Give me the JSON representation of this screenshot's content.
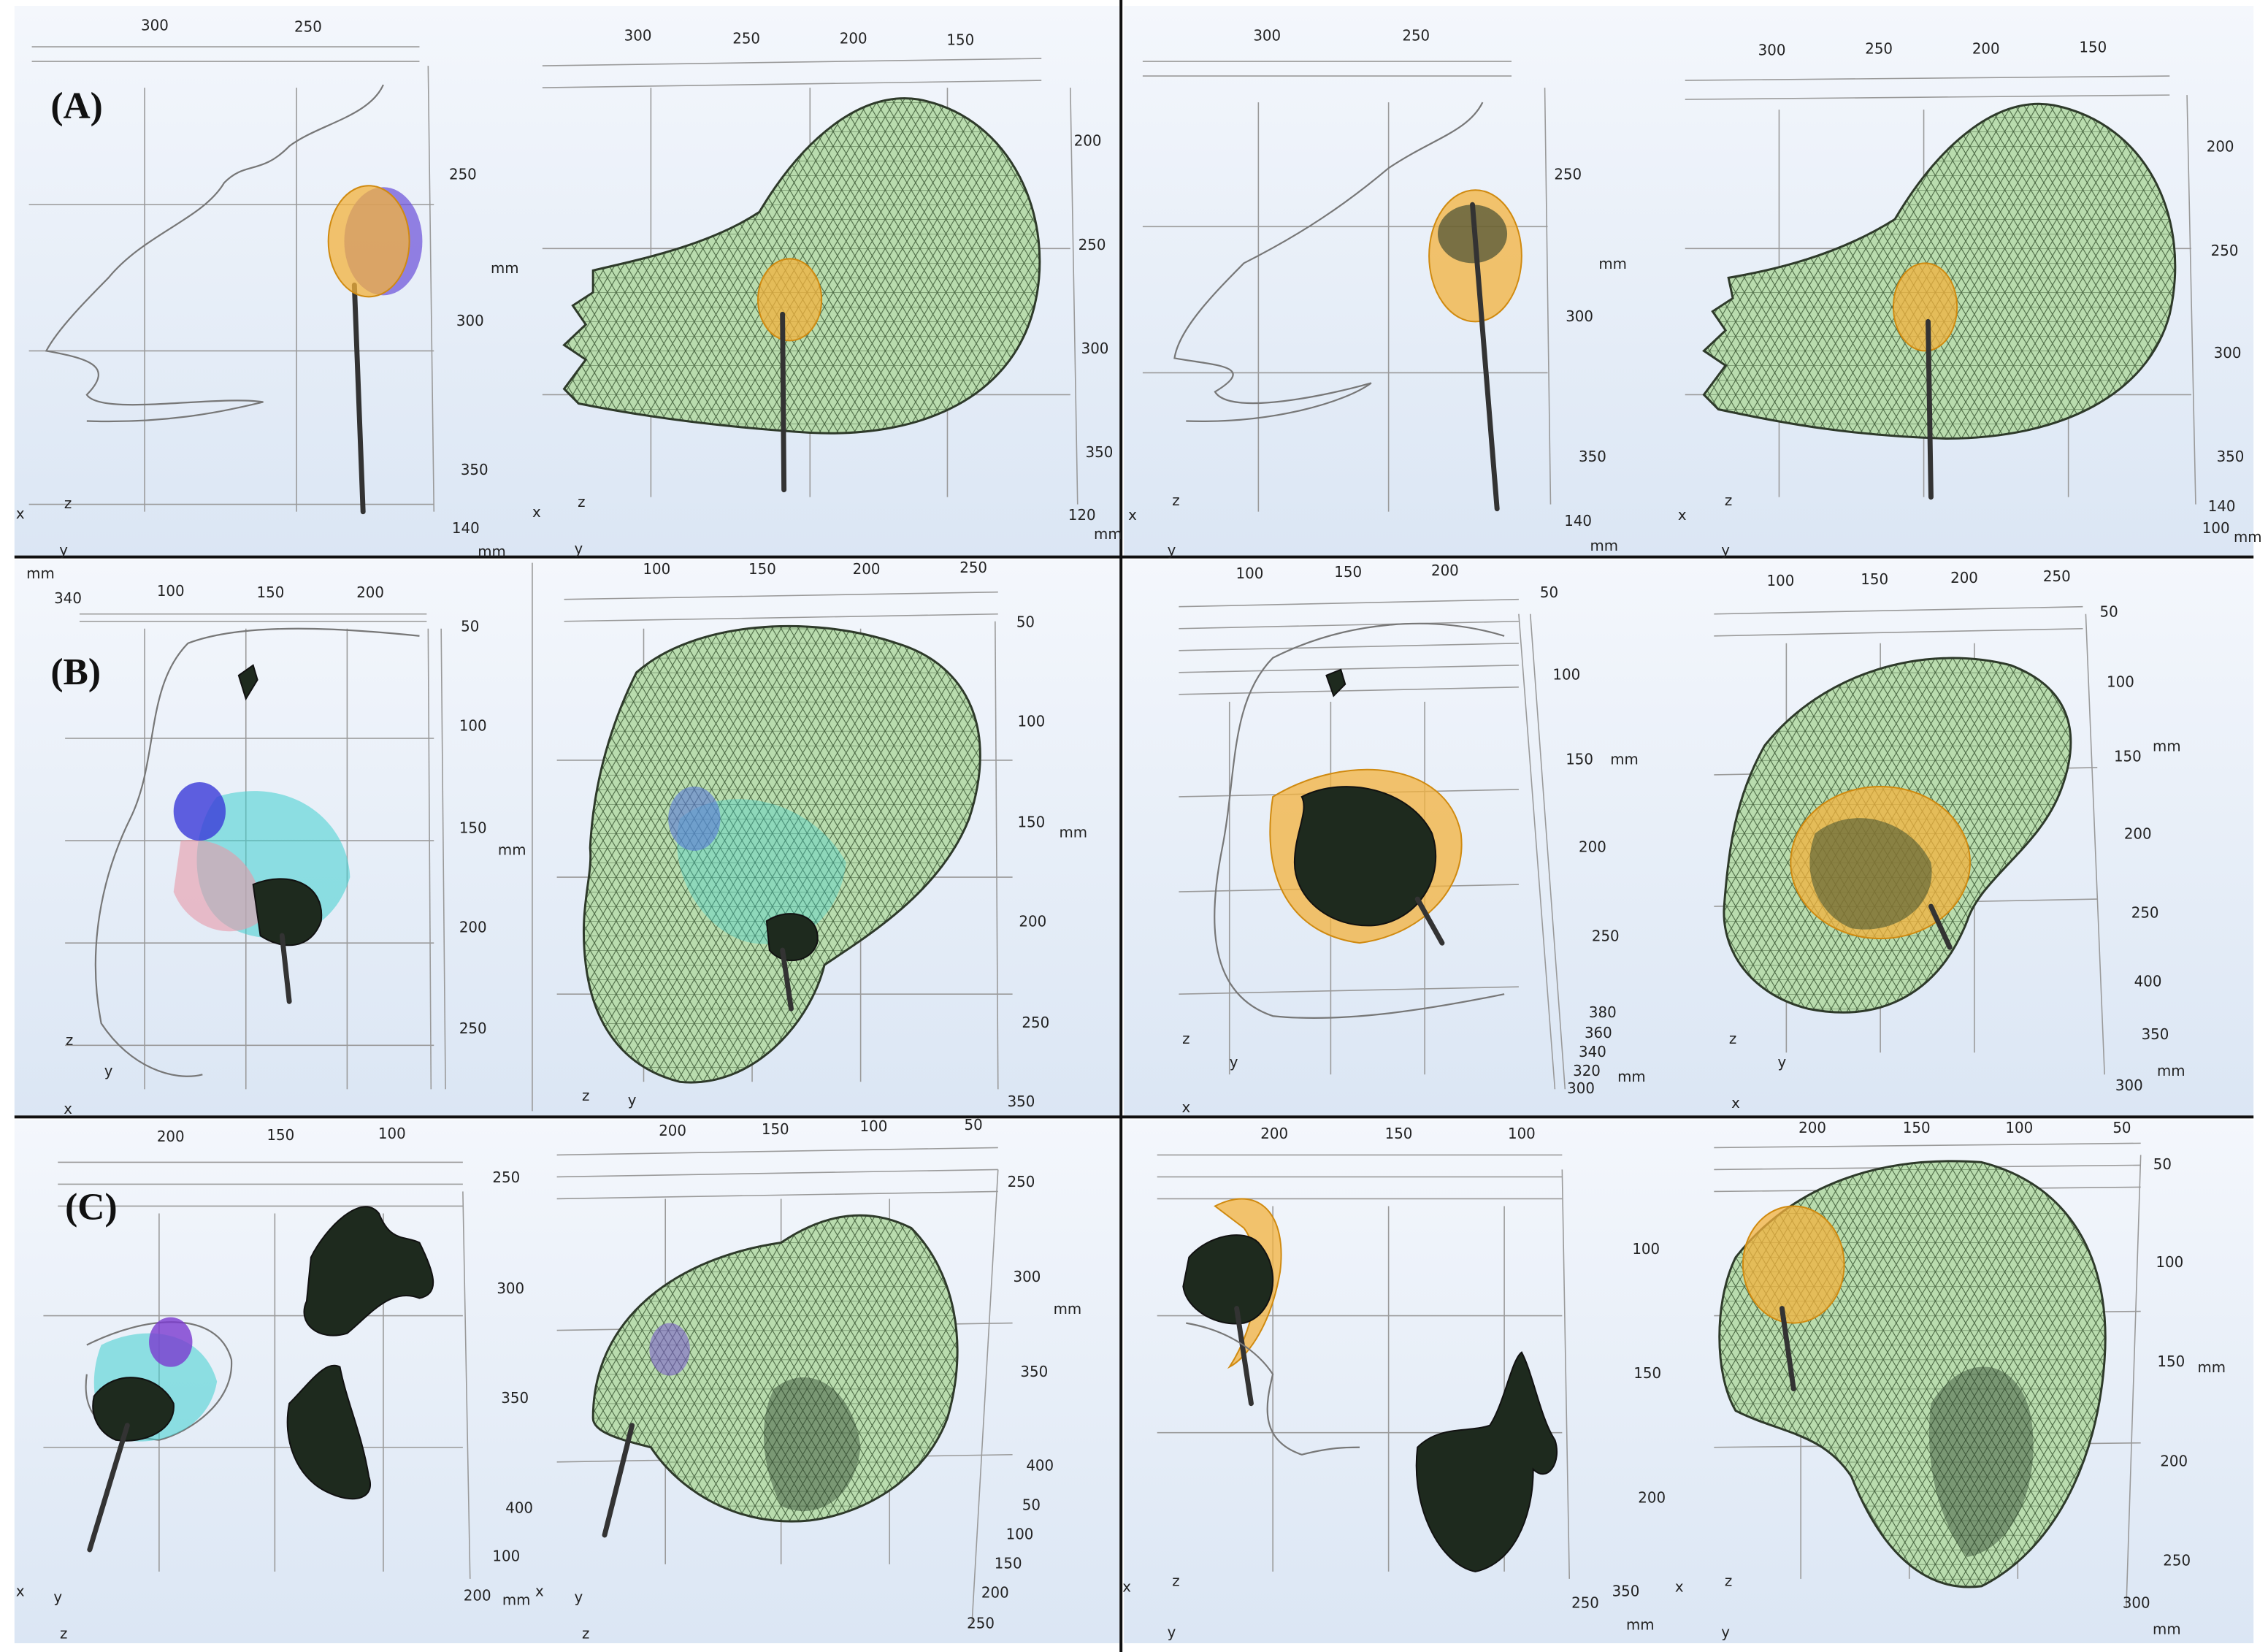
{
  "rows": [
    {
      "label": "(A)",
      "views": [
        {
          "labels": [
            "300",
            "250",
            "250",
            "mm",
            "300",
            "350",
            "140",
            "mm",
            "x",
            "z",
            "y"
          ]
        },
        {
          "labels": [
            "300",
            "250",
            "200",
            "150",
            "200",
            "250",
            "300",
            "350",
            "120",
            "mm",
            "x",
            "z",
            "y"
          ]
        },
        {
          "labels": [
            "300",
            "250",
            "250",
            "mm",
            "300",
            "350",
            "140",
            "mm",
            "x",
            "z",
            "y"
          ]
        },
        {
          "labels": [
            "300",
            "250",
            "200",
            "150",
            "200",
            "250",
            "300",
            "350",
            "140",
            "100",
            "mm",
            "x",
            "z",
            "y"
          ]
        }
      ]
    },
    {
      "label": "(B)",
      "views": [
        {
          "labels": [
            "mm",
            "340",
            "100",
            "150",
            "200",
            "50",
            "100",
            "150",
            "mm",
            "200",
            "250",
            "z",
            "y",
            "x"
          ]
        },
        {
          "labels": [
            "100",
            "150",
            "200",
            "250",
            "50",
            "100",
            "150",
            "mm",
            "200",
            "250",
            "350",
            "z",
            "y"
          ]
        },
        {
          "labels": [
            "100",
            "150",
            "200",
            "50",
            "100",
            "150",
            "mm",
            "200",
            "250",
            "380",
            "360",
            "340",
            "320",
            "mm",
            "300",
            "z",
            "y",
            "x"
          ]
        },
        {
          "labels": [
            "100",
            "150",
            "200",
            "250",
            "50",
            "100",
            "150",
            "mm",
            "200",
            "250",
            "400",
            "350",
            "300",
            "mm",
            "z",
            "y",
            "x"
          ]
        }
      ]
    },
    {
      "label": "(C)",
      "views": [
        {
          "labels": [
            "200",
            "150",
            "100",
            "250",
            "300",
            "350",
            "400",
            "100",
            "200",
            "mm",
            "x",
            "y",
            "z"
          ]
        },
        {
          "labels": [
            "200",
            "150",
            "100",
            "50",
            "250",
            "300",
            "mm",
            "350",
            "400",
            "50",
            "100",
            "150",
            "200",
            "250",
            "x",
            "y",
            "z"
          ]
        },
        {
          "labels": [
            "200",
            "150",
            "100",
            "100",
            "150",
            "200",
            "250",
            "350",
            "mm",
            "x",
            "z",
            "y"
          ]
        },
        {
          "labels": [
            "200",
            "150",
            "100",
            "50",
            "50",
            "100",
            "150",
            "mm",
            "200",
            "250",
            "300",
            "mm",
            "x",
            "z",
            "y"
          ]
        }
      ]
    }
  ]
}
